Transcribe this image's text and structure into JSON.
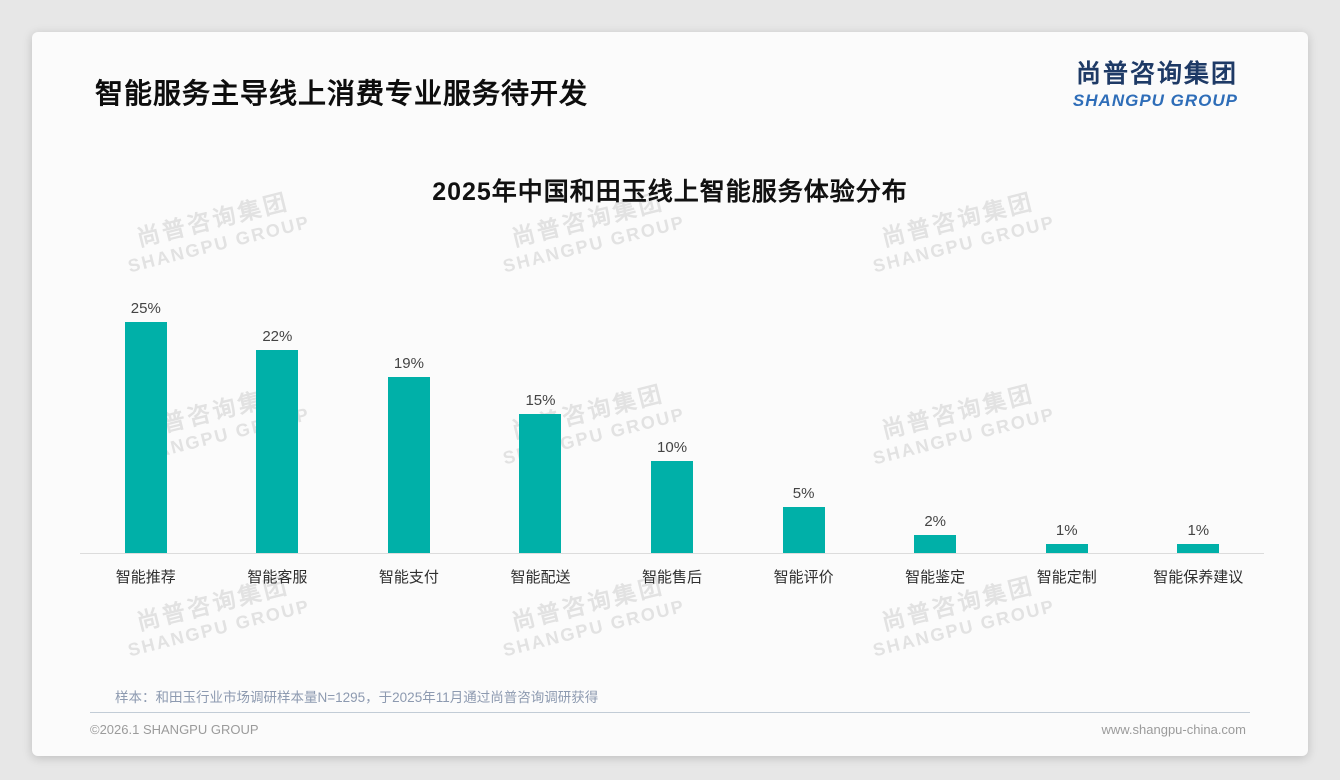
{
  "page": {
    "title": "智能服务主导线上消费专业服务待开发",
    "logo": {
      "cn": "尚普咨询集团",
      "en": "SHANGPU GROUP"
    },
    "watermark": {
      "cn": "尚普咨询集团",
      "en": "SHANGPU GROUP"
    },
    "footnote": "样本：和田玉行业市场调研样本量N=1295，于2025年11月通过尚普咨询调研获得",
    "footer_left": "©2026.1 SHANGPU GROUP",
    "footer_right": "www.shangpu-china.com"
  },
  "colors": {
    "bar": "#00b0a8",
    "logo_cn": "#1e3a66",
    "logo_en": "#2e6db8",
    "axis_line": "#dcdcdc"
  },
  "chart_data": {
    "type": "bar",
    "title": "2025年中国和田玉线上智能服务体验分布",
    "categories": [
      "智能推荐",
      "智能客服",
      "智能支付",
      "智能配送",
      "智能售后",
      "智能评价",
      "智能鉴定",
      "智能定制",
      "智能保养建议"
    ],
    "values": [
      25,
      22,
      19,
      15,
      10,
      5,
      2,
      1,
      1
    ],
    "data_labels": [
      "25%",
      "22%",
      "19%",
      "15%",
      "10%",
      "5%",
      "2%",
      "1%",
      "1%"
    ],
    "unit": "%",
    "xlabel": "",
    "ylabel": "",
    "ylim": [
      0,
      27
    ],
    "grid": false,
    "legend": "none",
    "bar_color": "#00b0a8"
  }
}
